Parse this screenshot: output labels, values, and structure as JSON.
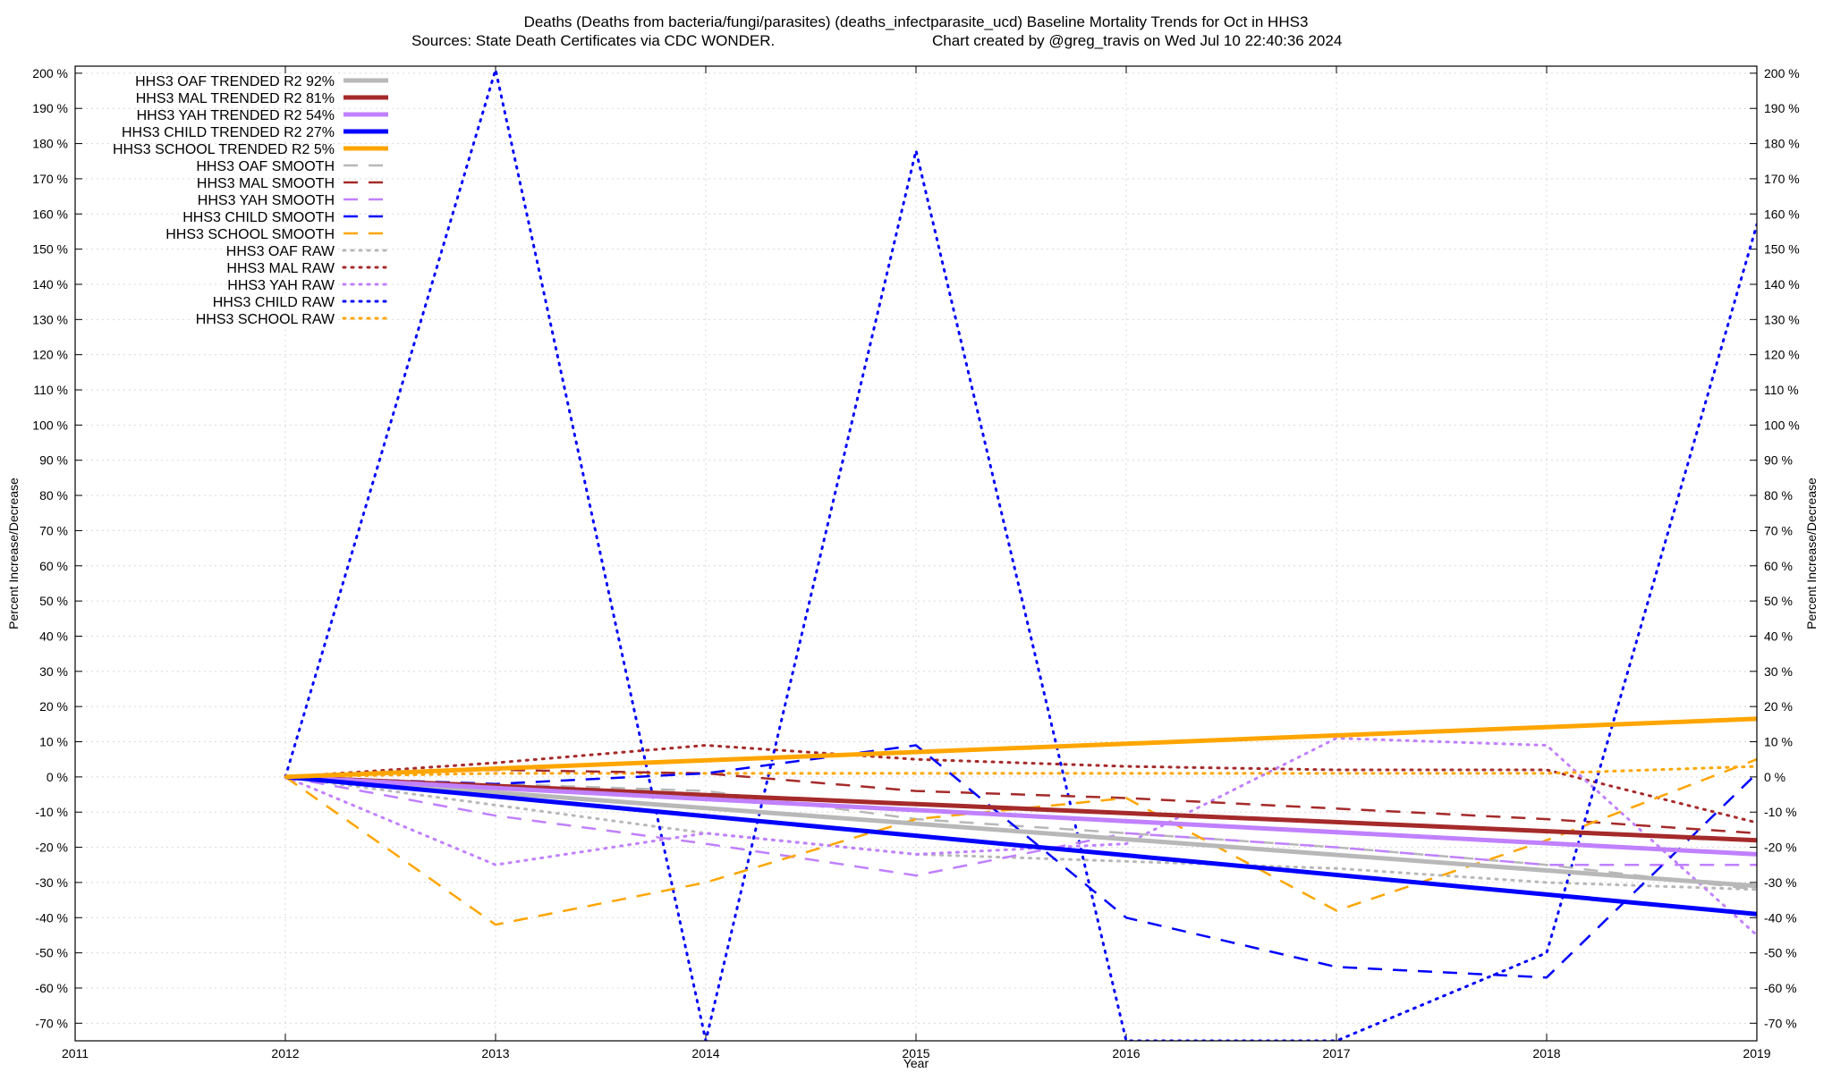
{
  "chart_data": {
    "type": "line",
    "title_line1": "Deaths (Deaths from bacteria/fungi/parasites) (deaths_infectparasite_ucd)  Baseline Mortality Trends for Oct in HHS3",
    "title_line2_left": "Sources: State Death Certificates via CDC WONDER.",
    "title_line2_right": "Chart created by @greg_travis on Wed Jul 10 22:40:36 2024",
    "xlabel": "Year",
    "ylabel_left": "Percent Increase/Decrease",
    "ylabel_right": "Percent Increase/Decrease",
    "xlim": [
      2011,
      2019
    ],
    "ylim": [
      -75,
      202
    ],
    "x_ticks": [
      "2011",
      "2012",
      "2013",
      "2014",
      "2015",
      "2016",
      "2017",
      "2018",
      "2019"
    ],
    "y_ticks": [
      "200 %",
      "190 %",
      "180 %",
      "170 %",
      "160 %",
      "150 %",
      "140 %",
      "130 %",
      "120 %",
      "110 %",
      "100 %",
      "90 %",
      "80 %",
      "70 %",
      "60 %",
      "50 %",
      "40 %",
      "30 %",
      "20 %",
      "10 %",
      "0 %",
      "-10 %",
      "-20 %",
      "-30 %",
      "-40 %",
      "-50 %",
      "-60 %",
      "-70 %"
    ],
    "legend_position": "top-left",
    "series": [
      {
        "name": "HHS3 OAF TRENDED R2  92%",
        "style": "solid",
        "color": "#b8b8b8",
        "width": 5,
        "x": [
          2012,
          2019
        ],
        "y": [
          0,
          -31
        ]
      },
      {
        "name": "HHS3 MAL TRENDED R2  81%",
        "style": "solid",
        "color": "#a52a2a",
        "width": 5,
        "x": [
          2012,
          2019
        ],
        "y": [
          0,
          -18
        ]
      },
      {
        "name": "HHS3 YAH TRENDED R2  54%",
        "style": "solid",
        "color": "#c080ff",
        "width": 5,
        "x": [
          2012,
          2019
        ],
        "y": [
          0,
          -22
        ]
      },
      {
        "name": "HHS3 CHILD TRENDED R2  27%",
        "style": "solid",
        "color": "#0000ff",
        "width": 5,
        "x": [
          2012,
          2019
        ],
        "y": [
          0,
          -39
        ]
      },
      {
        "name": "HHS3 SCHOOL TRENDED R2   5%",
        "style": "solid",
        "color": "#ffa500",
        "width": 5,
        "x": [
          2012,
          2019
        ],
        "y": [
          0,
          16.5
        ]
      },
      {
        "name": "HHS3 OAF SMOOTH",
        "style": "dashed",
        "color": "#b8b8b8",
        "width": 2.5,
        "x": [
          2012,
          2013,
          2014,
          2015,
          2016,
          2017,
          2018,
          2019
        ],
        "y": [
          0,
          -2,
          -4,
          -12,
          -16,
          -20,
          -25,
          -32
        ]
      },
      {
        "name": "HHS3 MAL SMOOTH",
        "style": "dashed",
        "color": "#a52a2a",
        "width": 2.5,
        "x": [
          2012,
          2013,
          2014,
          2015,
          2016,
          2017,
          2018,
          2019
        ],
        "y": [
          0,
          2,
          1,
          -4,
          -6,
          -9,
          -12,
          -16
        ]
      },
      {
        "name": "HHS3 YAH SMOOTH",
        "style": "dashed",
        "color": "#c080ff",
        "width": 2.5,
        "x": [
          2012,
          2013,
          2014,
          2015,
          2016,
          2017,
          2018,
          2019
        ],
        "y": [
          0,
          -11,
          -19,
          -28,
          -16,
          -20,
          -25,
          -25
        ]
      },
      {
        "name": "HHS3 CHILD SMOOTH",
        "style": "dashed",
        "color": "#0000ff",
        "width": 2.5,
        "x": [
          2012,
          2013,
          2014,
          2015,
          2016,
          2017,
          2018,
          2019
        ],
        "y": [
          0,
          -2,
          1,
          9,
          -40,
          -54,
          -57,
          1
        ]
      },
      {
        "name": "HHS3 SCHOOL SMOOTH",
        "style": "dashed",
        "color": "#ffa500",
        "width": 2.5,
        "x": [
          2012,
          2013,
          2014,
          2015,
          2016,
          2017,
          2018,
          2019
        ],
        "y": [
          0,
          -42,
          -30,
          -12,
          -6,
          -38,
          -18,
          5
        ]
      },
      {
        "name": "HHS3 OAF RAW",
        "style": "dotted",
        "color": "#b8b8b8",
        "width": 3,
        "x": [
          2012,
          2013,
          2014,
          2015,
          2016,
          2017,
          2018,
          2019
        ],
        "y": [
          0,
          -8,
          -16,
          -22,
          -24,
          -26,
          -30,
          -32
        ]
      },
      {
        "name": "HHS3 MAL RAW",
        "style": "dotted",
        "color": "#a52a2a",
        "width": 3,
        "x": [
          2012,
          2013,
          2014,
          2015,
          2016,
          2017,
          2018,
          2019
        ],
        "y": [
          0,
          4,
          9,
          5,
          3,
          2,
          2,
          -13
        ]
      },
      {
        "name": "HHS3 YAH RAW",
        "style": "dotted",
        "color": "#c080ff",
        "width": 3,
        "x": [
          2012,
          2013,
          2014,
          2015,
          2016,
          2017,
          2018,
          2019
        ],
        "y": [
          0,
          -25,
          -16,
          -22,
          -19,
          11,
          9,
          -45
        ]
      },
      {
        "name": "HHS3 CHILD RAW",
        "style": "dotted",
        "color": "#0000ff",
        "width": 3,
        "x": [
          2012,
          2013,
          2014,
          2015,
          2016,
          2017,
          2018,
          2019
        ],
        "y": [
          0,
          201,
          -75,
          178,
          -75,
          -75,
          -50,
          157
        ]
      },
      {
        "name": "HHS3 SCHOOL RAW",
        "style": "dotted",
        "color": "#ffa500",
        "width": 3,
        "x": [
          2012,
          2013,
          2014,
          2015,
          2016,
          2017,
          2018,
          2019
        ],
        "y": [
          0,
          1,
          1,
          1,
          1,
          1,
          1,
          3
        ]
      }
    ]
  }
}
